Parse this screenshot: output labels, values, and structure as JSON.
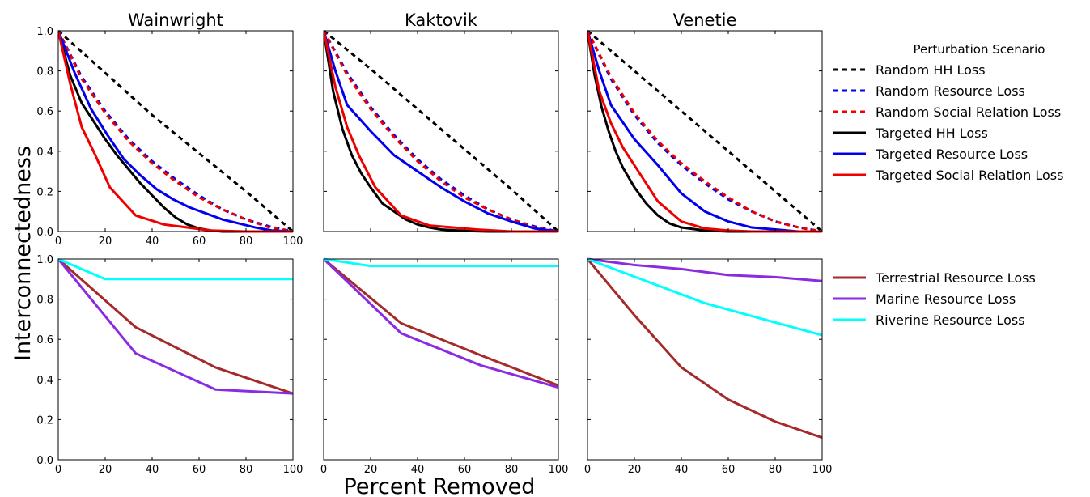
{
  "figure": {
    "ylabel": "Interconnectedness",
    "xlabel": "Percent Removed"
  },
  "legends": {
    "top": {
      "title": "Perturbation Scenario",
      "entries": [
        {
          "label": "Random HH Loss",
          "color": "#000000",
          "dashed": true
        },
        {
          "label": "Random Resource Loss",
          "color": "#0000ee",
          "dashed": true
        },
        {
          "label": "Random Social Relation Loss",
          "color": "#ee0000",
          "dashed": true
        },
        {
          "label": "Targeted HH Loss",
          "color": "#000000",
          "dashed": false
        },
        {
          "label": "Targeted Resource Loss",
          "color": "#0000ee",
          "dashed": false
        },
        {
          "label": "Targeted Social Relation Loss",
          "color": "#ee0000",
          "dashed": false
        }
      ]
    },
    "bottom": {
      "title": "",
      "entries": [
        {
          "label": "Terrestrial Resource Loss",
          "color": "#a52a2a",
          "dashed": false
        },
        {
          "label": "Marine Resource Loss",
          "color": "#8a2be2",
          "dashed": false
        },
        {
          "label": "Riverine Resource Loss",
          "color": "#00ffff",
          "dashed": false
        }
      ]
    }
  },
  "chart_data": [
    {
      "type": "line",
      "row": 0,
      "col": 0,
      "title": "Wainwright",
      "xlim": [
        0,
        100
      ],
      "ylim": [
        0,
        1.0
      ],
      "xticks": [
        "0",
        "20",
        "40",
        "60",
        "80",
        "100"
      ],
      "yticks": [
        "0.0",
        "0.2",
        "0.4",
        "0.6",
        "0.8",
        "1.0"
      ],
      "series": [
        {
          "name": "Random HH Loss",
          "color": "#000000",
          "dashed": true,
          "x": [
            0,
            20,
            40,
            60,
            80,
            100
          ],
          "y": [
            1.0,
            0.79,
            0.58,
            0.39,
            0.2,
            0.0
          ]
        },
        {
          "name": "Random Resource Loss",
          "color": "#0000ee",
          "dashed": true,
          "x": [
            0,
            10,
            20,
            30,
            40,
            50,
            60,
            70,
            80,
            90,
            100
          ],
          "y": [
            1.0,
            0.77,
            0.6,
            0.46,
            0.35,
            0.26,
            0.18,
            0.11,
            0.06,
            0.025,
            0.0
          ]
        },
        {
          "name": "Random Social Relation Loss",
          "color": "#ee0000",
          "dashed": true,
          "x": [
            0,
            10,
            20,
            30,
            40,
            50,
            60,
            70,
            80,
            90,
            100
          ],
          "y": [
            1.0,
            0.76,
            0.59,
            0.45,
            0.34,
            0.25,
            0.17,
            0.11,
            0.06,
            0.02,
            0.0
          ]
        },
        {
          "name": "Targeted HH Loss",
          "color": "#000000",
          "dashed": false,
          "x": [
            0,
            5,
            10,
            15,
            20,
            25,
            30,
            35,
            40,
            45,
            50,
            55,
            60,
            65,
            70,
            80,
            100
          ],
          "y": [
            1.0,
            0.78,
            0.64,
            0.55,
            0.46,
            0.38,
            0.31,
            0.24,
            0.18,
            0.12,
            0.07,
            0.035,
            0.015,
            0.005,
            0.0,
            0.0,
            0.0
          ]
        },
        {
          "name": "Targeted Resource Loss",
          "color": "#0000ee",
          "dashed": false,
          "x": [
            0,
            7,
            14,
            21,
            28,
            35,
            42,
            49,
            56,
            63,
            70,
            77,
            84,
            91,
            100
          ],
          "y": [
            1.0,
            0.79,
            0.61,
            0.48,
            0.36,
            0.28,
            0.21,
            0.16,
            0.12,
            0.09,
            0.06,
            0.04,
            0.02,
            0.005,
            0.0
          ]
        },
        {
          "name": "Targeted Social Relation Loss",
          "color": "#ee0000",
          "dashed": false,
          "x": [
            0,
            5,
            10,
            15,
            22,
            33,
            45,
            55,
            65,
            80,
            100
          ],
          "y": [
            1.0,
            0.74,
            0.52,
            0.4,
            0.22,
            0.08,
            0.035,
            0.02,
            0.005,
            0.0,
            0.0
          ]
        }
      ]
    },
    {
      "type": "line",
      "row": 0,
      "col": 1,
      "title": "Kaktovik",
      "xlim": [
        0,
        100
      ],
      "ylim": [
        0,
        1.0
      ],
      "xticks": [],
      "yticks": [],
      "series": [
        {
          "name": "Random HH Loss",
          "color": "#000000",
          "dashed": true,
          "x": [
            0,
            20,
            40,
            60,
            80,
            100
          ],
          "y": [
            1.0,
            0.81,
            0.61,
            0.41,
            0.21,
            0.0
          ]
        },
        {
          "name": "Random Resource Loss",
          "color": "#0000ee",
          "dashed": true,
          "x": [
            0,
            10,
            20,
            30,
            40,
            50,
            60,
            70,
            80,
            90,
            100
          ],
          "y": [
            1.0,
            0.79,
            0.62,
            0.48,
            0.36,
            0.26,
            0.18,
            0.11,
            0.06,
            0.025,
            0.0
          ]
        },
        {
          "name": "Random Social Relation Loss",
          "color": "#ee0000",
          "dashed": true,
          "x": [
            0,
            10,
            20,
            30,
            40,
            50,
            60,
            70,
            80,
            90,
            100
          ],
          "y": [
            1.0,
            0.78,
            0.61,
            0.47,
            0.35,
            0.25,
            0.17,
            0.11,
            0.06,
            0.02,
            0.0
          ]
        },
        {
          "name": "Targeted HH Loss",
          "color": "#000000",
          "dashed": false,
          "x": [
            0,
            4,
            8,
            12,
            16,
            20,
            25,
            30,
            35,
            40,
            45,
            50,
            60,
            70,
            80,
            100
          ],
          "y": [
            1.0,
            0.7,
            0.51,
            0.38,
            0.29,
            0.22,
            0.14,
            0.1,
            0.06,
            0.035,
            0.02,
            0.01,
            0.003,
            0.0,
            0.0,
            0.0
          ]
        },
        {
          "name": "Targeted Resource Loss",
          "color": "#0000ee",
          "dashed": false,
          "x": [
            0,
            5,
            10,
            20,
            30,
            40,
            50,
            60,
            70,
            80,
            90,
            100
          ],
          "y": [
            1.0,
            0.8,
            0.63,
            0.5,
            0.38,
            0.3,
            0.22,
            0.15,
            0.09,
            0.05,
            0.015,
            0.0
          ]
        },
        {
          "name": "Targeted Social Relation Loss",
          "color": "#ee0000",
          "dashed": false,
          "x": [
            0,
            5,
            10,
            15,
            22,
            33,
            45,
            55,
            65,
            80,
            100
          ],
          "y": [
            1.0,
            0.72,
            0.52,
            0.38,
            0.22,
            0.08,
            0.03,
            0.02,
            0.01,
            0.0,
            0.0
          ]
        }
      ]
    },
    {
      "type": "line",
      "row": 0,
      "col": 2,
      "title": "Venetie",
      "xlim": [
        0,
        100
      ],
      "ylim": [
        0,
        1.0
      ],
      "xticks": [],
      "yticks": [],
      "series": [
        {
          "name": "Random HH Loss",
          "color": "#000000",
          "dashed": true,
          "x": [
            0,
            20,
            40,
            60,
            80,
            100
          ],
          "y": [
            1.0,
            0.8,
            0.6,
            0.4,
            0.2,
            0.0
          ]
        },
        {
          "name": "Random Resource Loss",
          "color": "#0000ee",
          "dashed": true,
          "x": [
            0,
            10,
            20,
            30,
            40,
            50,
            60,
            70,
            80,
            90,
            100
          ],
          "y": [
            1.0,
            0.76,
            0.58,
            0.44,
            0.33,
            0.24,
            0.16,
            0.1,
            0.05,
            0.02,
            0.0
          ]
        },
        {
          "name": "Random Social Relation Loss",
          "color": "#ee0000",
          "dashed": true,
          "x": [
            0,
            10,
            20,
            30,
            40,
            50,
            60,
            70,
            80,
            90,
            100
          ],
          "y": [
            1.0,
            0.77,
            0.59,
            0.45,
            0.34,
            0.25,
            0.17,
            0.1,
            0.05,
            0.02,
            0.0
          ]
        },
        {
          "name": "Targeted HH Loss",
          "color": "#000000",
          "dashed": false,
          "x": [
            0,
            3,
            6,
            9,
            12,
            15,
            20,
            25,
            30,
            35,
            40,
            50,
            60,
            80,
            100
          ],
          "y": [
            1.0,
            0.78,
            0.62,
            0.5,
            0.4,
            0.32,
            0.22,
            0.14,
            0.08,
            0.04,
            0.02,
            0.005,
            0.0,
            0.0,
            0.0
          ]
        },
        {
          "name": "Targeted Resource Loss",
          "color": "#0000ee",
          "dashed": false,
          "x": [
            0,
            5,
            10,
            20,
            30,
            40,
            50,
            60,
            70,
            80,
            90,
            100
          ],
          "y": [
            1.0,
            0.8,
            0.63,
            0.46,
            0.33,
            0.19,
            0.1,
            0.05,
            0.02,
            0.01,
            0.0,
            0.0
          ]
        },
        {
          "name": "Targeted Social Relation Loss",
          "color": "#ee0000",
          "dashed": false,
          "x": [
            0,
            5,
            10,
            15,
            20,
            30,
            40,
            50,
            60,
            70,
            100
          ],
          "y": [
            1.0,
            0.7,
            0.54,
            0.42,
            0.33,
            0.15,
            0.05,
            0.015,
            0.005,
            0.0,
            0.0
          ]
        }
      ]
    },
    {
      "type": "line",
      "row": 1,
      "col": 0,
      "title": "",
      "xlim": [
        0,
        100
      ],
      "ylim": [
        0,
        1.0
      ],
      "xticks": [
        "0",
        "20",
        "40",
        "60",
        "80",
        "100"
      ],
      "yticks": [
        "0.0",
        "0.2",
        "0.4",
        "0.6",
        "0.8",
        "1.0"
      ],
      "series": [
        {
          "name": "Terrestrial Resource Loss",
          "color": "#a52a2a",
          "dashed": false,
          "x": [
            0,
            33,
            67,
            100
          ],
          "y": [
            1.0,
            0.66,
            0.46,
            0.33
          ]
        },
        {
          "name": "Marine Resource Loss",
          "color": "#8a2be2",
          "dashed": false,
          "x": [
            0,
            33,
            67,
            100
          ],
          "y": [
            1.0,
            0.53,
            0.35,
            0.33
          ]
        },
        {
          "name": "Riverine Resource Loss",
          "color": "#00ffff",
          "dashed": false,
          "x": [
            0,
            20,
            100
          ],
          "y": [
            1.0,
            0.9,
            0.9
          ]
        }
      ]
    },
    {
      "type": "line",
      "row": 1,
      "col": 1,
      "title": "",
      "xlim": [
        0,
        100
      ],
      "ylim": [
        0,
        1.0
      ],
      "xticks": [
        "0",
        "20",
        "40",
        "60",
        "80",
        "100"
      ],
      "yticks": [],
      "series": [
        {
          "name": "Terrestrial Resource Loss",
          "color": "#a52a2a",
          "dashed": false,
          "x": [
            0,
            33,
            67,
            100
          ],
          "y": [
            1.0,
            0.68,
            0.52,
            0.37
          ]
        },
        {
          "name": "Marine Resource Loss",
          "color": "#8a2be2",
          "dashed": false,
          "x": [
            0,
            33,
            67,
            100
          ],
          "y": [
            1.0,
            0.63,
            0.47,
            0.36
          ]
        },
        {
          "name": "Riverine Resource Loss",
          "color": "#00ffff",
          "dashed": false,
          "x": [
            0,
            20,
            100
          ],
          "y": [
            1.0,
            0.965,
            0.965
          ]
        }
      ]
    },
    {
      "type": "line",
      "row": 1,
      "col": 2,
      "title": "",
      "xlim": [
        0,
        100
      ],
      "ylim": [
        0,
        1.0
      ],
      "xticks": [
        "0",
        "20",
        "40",
        "60",
        "80",
        "100"
      ],
      "yticks": [],
      "series": [
        {
          "name": "Terrestrial Resource Loss",
          "color": "#a52a2a",
          "dashed": false,
          "x": [
            0,
            20,
            40,
            60,
            80,
            100
          ],
          "y": [
            1.0,
            0.72,
            0.46,
            0.3,
            0.19,
            0.11
          ]
        },
        {
          "name": "Marine Resource Loss",
          "color": "#8a2be2",
          "dashed": false,
          "x": [
            0,
            20,
            40,
            60,
            80,
            100
          ],
          "y": [
            1.0,
            0.97,
            0.95,
            0.92,
            0.91,
            0.89
          ]
        },
        {
          "name": "Riverine Resource Loss",
          "color": "#00ffff",
          "dashed": false,
          "x": [
            0,
            25,
            50,
            75,
            100
          ],
          "y": [
            1.0,
            0.89,
            0.78,
            0.7,
            0.62
          ]
        }
      ]
    }
  ]
}
